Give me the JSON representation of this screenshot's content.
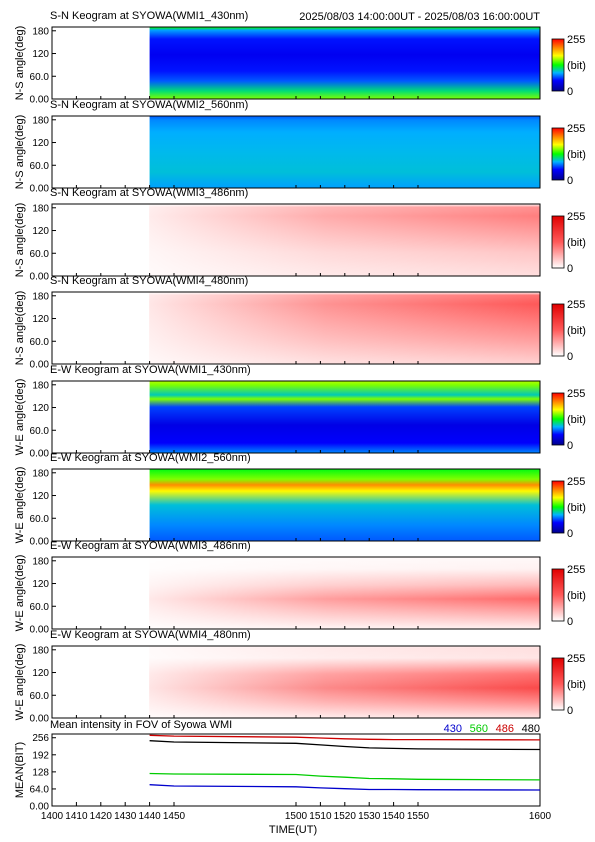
{
  "header": {
    "title": "S-N Keogram at SYOWA(WMI1_430nm)",
    "time_range": "2025/08/03 14:00:00UT - 2025/08/03 16:00:00UT"
  },
  "colorbar": {
    "max_label": "255",
    "unit_label": "(bit)",
    "min_label": "0"
  },
  "keograms": [
    {
      "title": "S-N Keogram at SYOWA(WMI1_430nm)",
      "ylabel": "N-S angle(deg)",
      "colormap": "rainbow",
      "y_ticks": [
        "180",
        "120",
        "60.0",
        "0.00"
      ],
      "data_start_time": "1440",
      "profile_bit": [
        [
          0,
          150
        ],
        [
          20,
          110
        ],
        [
          45,
          70
        ],
        [
          70,
          55
        ],
        [
          110,
          45
        ],
        [
          150,
          55
        ],
        [
          172,
          85
        ],
        [
          178,
          120
        ]
      ]
    },
    {
      "title": "S-N Keogram at SYOWA(WMI2_560nm)",
      "ylabel": "N-S angle(deg)",
      "colormap": "rainbow",
      "y_ticks": [
        "180",
        "120",
        "60.0",
        "0.00"
      ],
      "data_start_time": "1440",
      "profile_bit": [
        [
          0,
          85
        ],
        [
          40,
          95
        ],
        [
          90,
          92
        ],
        [
          140,
          88
        ],
        [
          170,
          80
        ],
        [
          180,
          70
        ]
      ]
    },
    {
      "title": "S-N Keogram at SYOWA(WMI3_486nm)",
      "ylabel": "N-S angle(deg)",
      "colormap": "white-red",
      "y_ticks": [
        "180",
        "120",
        "60.0",
        "0.00"
      ],
      "data_start_time": "1440",
      "profile_bit": [
        [
          0,
          25
        ],
        [
          60,
          45
        ],
        [
          110,
          75
        ],
        [
          150,
          100
        ],
        [
          172,
          85
        ],
        [
          180,
          0
        ]
      ]
    },
    {
      "title": "S-N Keogram at SYOWA(WMI4_480nm)",
      "ylabel": "N-S angle(deg)",
      "colormap": "white-red",
      "y_ticks": [
        "180",
        "120",
        "60.0",
        "0.00"
      ],
      "data_start_time": "1440",
      "profile_bit": [
        [
          0,
          35
        ],
        [
          60,
          75
        ],
        [
          110,
          105
        ],
        [
          150,
          130
        ],
        [
          172,
          110
        ],
        [
          180,
          0
        ]
      ]
    },
    {
      "title": "E-W Keogram at SYOWA(WMI1_430nm)",
      "ylabel": "W-E angle(deg)",
      "colormap": "rainbow",
      "y_ticks": [
        "180",
        "120",
        "60.0",
        "0.00"
      ],
      "data_start_time": "1440",
      "profile_bit": [
        [
          0,
          80
        ],
        [
          25,
          50
        ],
        [
          70,
          40
        ],
        [
          115,
          65
        ],
        [
          135,
          150
        ],
        [
          145,
          100
        ],
        [
          170,
          150
        ],
        [
          180,
          160
        ]
      ]
    },
    {
      "title": "E-W Keogram at SYOWA(WMI2_560nm)",
      "ylabel": "W-E angle(deg)",
      "colormap": "rainbow",
      "y_ticks": [
        "180",
        "120",
        "60.0",
        "0.00"
      ],
      "data_start_time": "1440",
      "profile_bit": [
        [
          0,
          70
        ],
        [
          40,
          80
        ],
        [
          90,
          95
        ],
        [
          125,
          175
        ],
        [
          140,
          210
        ],
        [
          155,
          150
        ],
        [
          180,
          125
        ]
      ]
    },
    {
      "title": "E-W Keogram at SYOWA(WMI3_486nm)",
      "ylabel": "W-E angle(deg)",
      "colormap": "white-red",
      "y_ticks": [
        "180",
        "120",
        "60.0",
        "0.00"
      ],
      "data_start_time": "1440",
      "profile_bit": [
        [
          0,
          10
        ],
        [
          40,
          65
        ],
        [
          75,
          115
        ],
        [
          110,
          55
        ],
        [
          150,
          10
        ],
        [
          180,
          5
        ]
      ]
    },
    {
      "title": "E-W Keogram at SYOWA(WMI4_480nm)",
      "ylabel": "W-E angle(deg)",
      "colormap": "white-red",
      "y_ticks": [
        "180",
        "120",
        "60.0",
        "0.00"
      ],
      "data_start_time": "1440",
      "profile_bit": [
        [
          0,
          20
        ],
        [
          40,
          90
        ],
        [
          75,
          150
        ],
        [
          110,
          110
        ],
        [
          150,
          20
        ],
        [
          175,
          25
        ],
        [
          180,
          10
        ]
      ]
    }
  ],
  "chart_data": {
    "type": "line",
    "title": "Mean intensity in FOV of Syowa WMI",
    "xlabel": "TIME(UT)",
    "ylabel": "MEAN(BIT)",
    "xlim": [
      1400,
      1600
    ],
    "ylim": [
      0,
      270
    ],
    "x_ticks": [
      "1400",
      "1410",
      "1420",
      "1430",
      "1440",
      "1450",
      "1500",
      "1510",
      "1520",
      "1530",
      "1540",
      "1550",
      "1600"
    ],
    "y_ticks": [
      "256",
      "192",
      "128",
      "64.0",
      "0.00"
    ],
    "series": [
      {
        "name": "430",
        "color": "#0000cc",
        "x": [
          1440,
          1450,
          1500,
          1510,
          1520,
          1530,
          1540,
          1550,
          1600
        ],
        "values": [
          80,
          75,
          72,
          68,
          65,
          62,
          62,
          61,
          60
        ]
      },
      {
        "name": "560",
        "color": "#00cc00",
        "x": [
          1440,
          1450,
          1500,
          1510,
          1520,
          1530,
          1540,
          1550,
          1600
        ],
        "values": [
          122,
          120,
          118,
          112,
          108,
          103,
          102,
          100,
          98
        ]
      },
      {
        "name": "486",
        "color": "#cc0000",
        "x": [
          1440,
          1450,
          1500,
          1510,
          1520,
          1530,
          1540,
          1550,
          1600
        ],
        "values": [
          265,
          262,
          258,
          255,
          252,
          250,
          249,
          249,
          248
        ]
      },
      {
        "name": "480",
        "color": "#000000",
        "x": [
          1440,
          1450,
          1500,
          1510,
          1520,
          1530,
          1540,
          1550,
          1600
        ],
        "values": [
          245,
          240,
          235,
          229,
          223,
          218,
          216,
          214,
          212
        ]
      }
    ]
  }
}
